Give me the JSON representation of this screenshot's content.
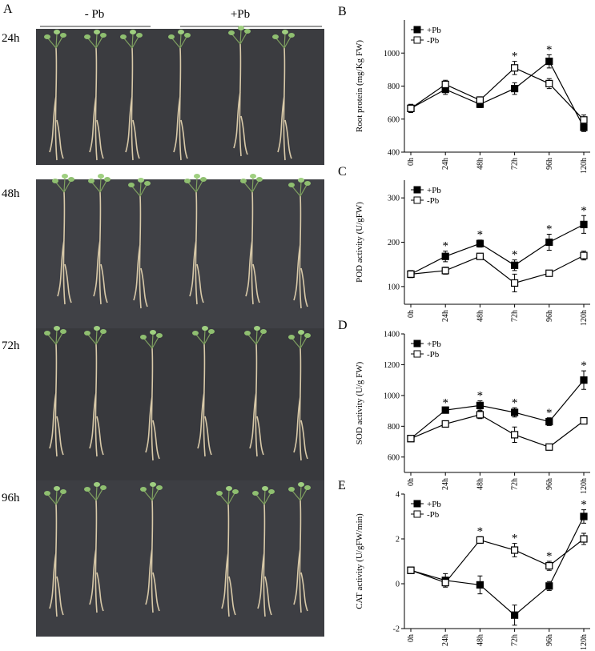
{
  "photo_panel": {
    "label": "A",
    "groups": [
      "- Pb",
      "+Pb"
    ],
    "rows": [
      "24h",
      "48h",
      "72h",
      "96h"
    ]
  },
  "chart_data": [
    {
      "type": "line",
      "label": "B",
      "y_label": "Root protein (mg/Kg FW)",
      "categories": [
        "0h",
        "24h",
        "48h",
        "72h",
        "96h",
        "120h"
      ],
      "series": [
        {
          "name": "+Pb",
          "color": "#000000",
          "filled": true,
          "values": [
            665,
            780,
            690,
            785,
            950,
            550
          ],
          "errors": [
            25,
            30,
            20,
            35,
            40,
            25
          ]
        },
        {
          "name": "-Pb",
          "color": "#000000",
          "filled": false,
          "values": [
            665,
            810,
            715,
            910,
            815,
            595
          ],
          "errors": [
            20,
            25,
            20,
            40,
            30,
            30
          ]
        }
      ],
      "significant": [
        false,
        false,
        false,
        true,
        true,
        false
      ],
      "significance_label": "*",
      "ylim": [
        400,
        1200
      ],
      "yticks": [
        400,
        600,
        800,
        1000
      ],
      "legend": "upper left"
    },
    {
      "type": "line",
      "label": "C",
      "y_label": "POD activity (U/gFW)",
      "categories": [
        "0h",
        "24h",
        "48h",
        "72h",
        "96h",
        "120h"
      ],
      "series": [
        {
          "name": "+Pb",
          "color": "#000000",
          "filled": true,
          "values": [
            128,
            168,
            197,
            148,
            200,
            240
          ],
          "errors": [
            8,
            12,
            8,
            12,
            18,
            20
          ]
        },
        {
          "name": "-Pb",
          "color": "#000000",
          "filled": false,
          "values": [
            128,
            136,
            168,
            108,
            130,
            170
          ],
          "errors": [
            5,
            8,
            6,
            20,
            6,
            10
          ]
        }
      ],
      "significant": [
        false,
        true,
        true,
        true,
        true,
        true
      ],
      "significance_label": "*",
      "ylim": [
        60,
        340
      ],
      "yticks": [
        100,
        200,
        300
      ],
      "legend": "upper left"
    },
    {
      "type": "line",
      "label": "D",
      "y_label": "SOD activity (U/g FW)",
      "categories": [
        "0h",
        "24h",
        "48h",
        "72h",
        "96h",
        "120h"
      ],
      "series": [
        {
          "name": "+Pb",
          "color": "#000000",
          "filled": true,
          "values": [
            720,
            905,
            935,
            890,
            830,
            1100
          ],
          "errors": [
            10,
            15,
            30,
            30,
            25,
            60
          ]
        },
        {
          "name": "-Pb",
          "color": "#000000",
          "filled": false,
          "values": [
            720,
            815,
            875,
            745,
            665,
            835
          ],
          "errors": [
            10,
            15,
            25,
            50,
            10,
            20
          ]
        }
      ],
      "significant": [
        false,
        true,
        true,
        true,
        true,
        true
      ],
      "significance_label": "*",
      "ylim": [
        500,
        1400
      ],
      "yticks": [
        600,
        800,
        1000,
        1200,
        1400
      ],
      "legend": "upper left"
    },
    {
      "type": "line",
      "label": "E",
      "y_label": "CAT activity (U/gFW/min)",
      "categories": [
        "0h",
        "24h",
        "48h",
        "72h",
        "96h",
        "120h"
      ],
      "series": [
        {
          "name": "+Pb",
          "color": "#000000",
          "filled": true,
          "values": [
            0.6,
            0.15,
            -0.05,
            -1.4,
            -0.1,
            3.0
          ],
          "errors": [
            0.15,
            0.3,
            0.4,
            0.45,
            0.2,
            0.3
          ]
        },
        {
          "name": "-Pb",
          "color": "#000000",
          "filled": false,
          "values": [
            0.6,
            0.05,
            1.95,
            1.5,
            0.8,
            2.0
          ],
          "errors": [
            0.15,
            0.15,
            0.15,
            0.3,
            0.2,
            0.25
          ]
        }
      ],
      "significant": [
        false,
        false,
        true,
        true,
        true,
        true
      ],
      "significance_label": "*",
      "ylim": [
        -2,
        4
      ],
      "yticks": [
        -2,
        0,
        2,
        4
      ],
      "legend": "upper left"
    }
  ]
}
